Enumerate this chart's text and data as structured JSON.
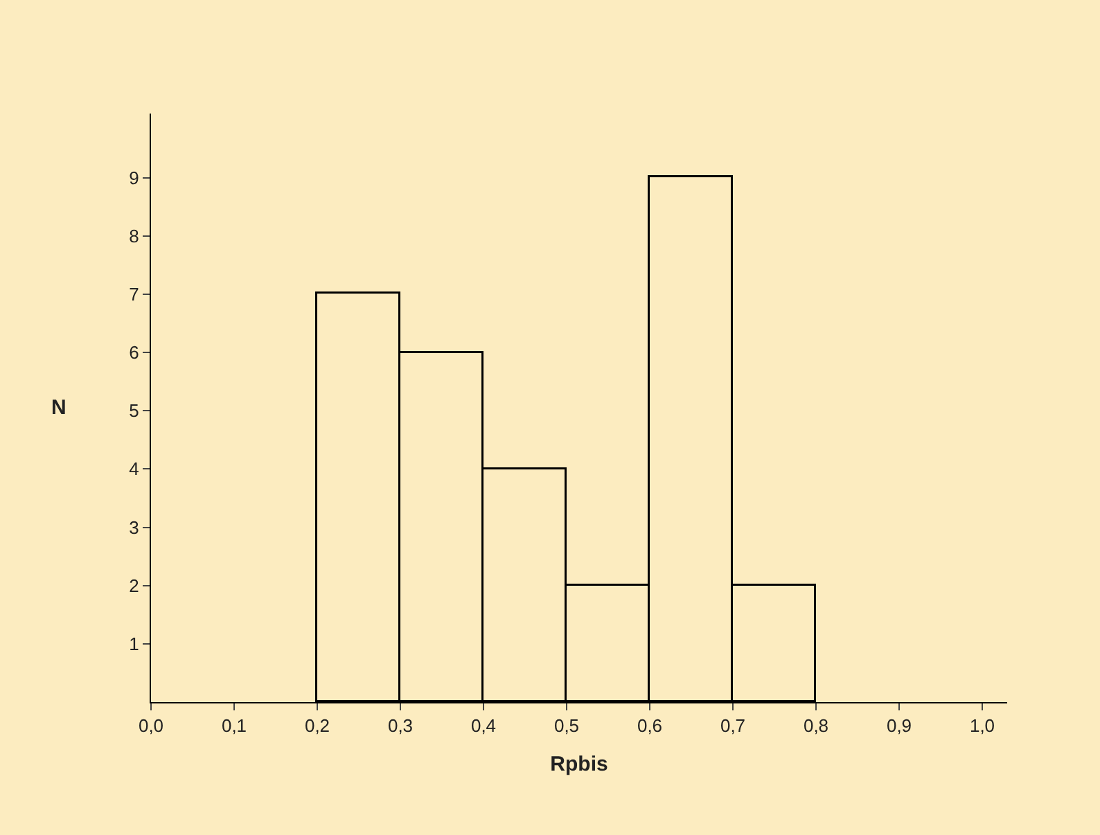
{
  "chart_data": {
    "type": "histogram",
    "xlabel": "Rpbis",
    "ylabel": "N",
    "bins": [
      0.2,
      0.3,
      0.4,
      0.5,
      0.6,
      0.7,
      0.8
    ],
    "values": [
      7,
      6,
      4,
      2,
      9,
      2
    ],
    "color": "#000000",
    "xlim": [
      0,
      1.03
    ],
    "ylim": [
      0,
      10.1
    ],
    "xticks": [
      {
        "value": 0,
        "label": "0,0"
      },
      {
        "value": 0.1,
        "label": "0,1"
      },
      {
        "value": 0.2,
        "label": "0,2"
      },
      {
        "value": 0.3,
        "label": "0,3"
      },
      {
        "value": 0.4,
        "label": "0,4"
      },
      {
        "value": 0.5,
        "label": "0,5"
      },
      {
        "value": 0.6,
        "label": "0,6"
      },
      {
        "value": 0.7,
        "label": "0,7"
      },
      {
        "value": 0.8,
        "label": "0,8"
      },
      {
        "value": 0.9,
        "label": "0,9"
      },
      {
        "value": 1.0,
        "label": "1,0"
      }
    ],
    "yticks": [
      1,
      2,
      3,
      4,
      5,
      6,
      7,
      8,
      9
    ]
  }
}
